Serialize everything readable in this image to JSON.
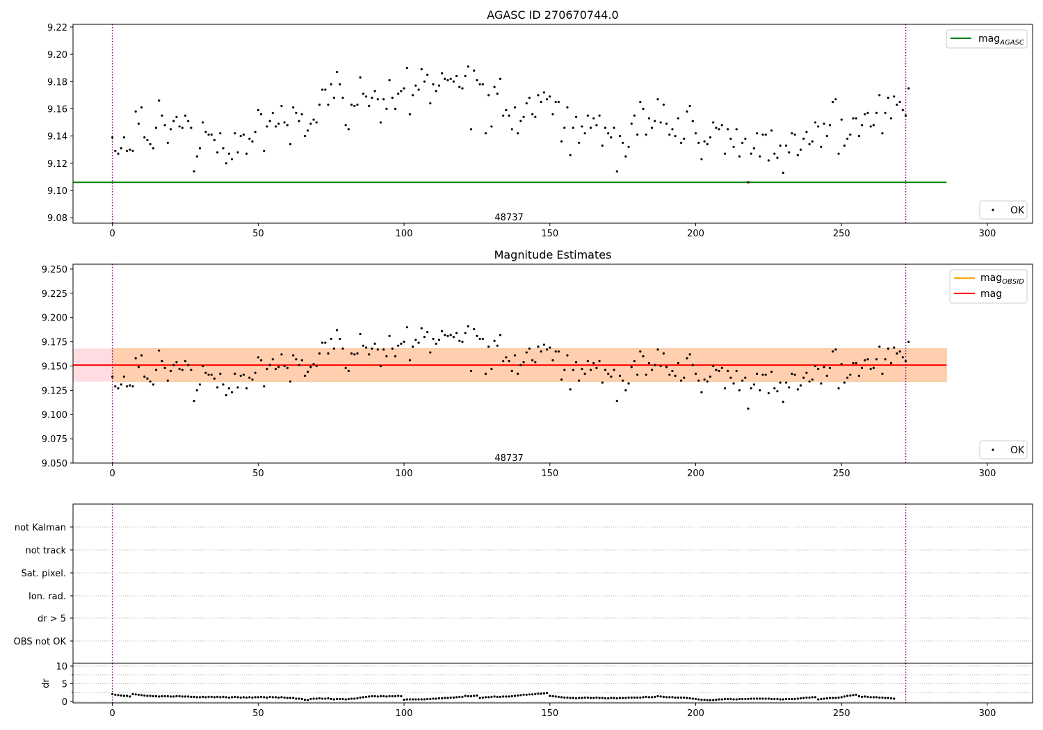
{
  "chart_data": [
    {
      "type": "scatter",
      "title": "AGASC ID 270670744.0",
      "xlim": [
        -13.5,
        315.5
      ],
      "ylim": [
        9.076,
        9.222
      ],
      "xticks": [
        0,
        50,
        100,
        150,
        200,
        250,
        300
      ],
      "yticks": [
        9.08,
        9.1,
        9.12,
        9.14,
        9.16,
        9.18,
        9.2,
        9.22
      ],
      "ytick_labels": [
        "9.08",
        "9.10",
        "9.12",
        "9.14",
        "9.16",
        "9.18",
        "9.20",
        "9.22"
      ],
      "reference_line": {
        "label_main": "mag",
        "label_sub": "AGASC",
        "value": 9.106,
        "x_range": [
          -13.5,
          286
        ],
        "color": "#008000"
      },
      "vlines": [
        0,
        272
      ],
      "vline_color": "#800080",
      "annotation": {
        "text": "48737",
        "x": 136,
        "y": 9.08
      },
      "series": [
        {
          "name": "OK",
          "color": "#000000"
        }
      ],
      "legend_ok": "OK",
      "legend_position": "top-right"
    },
    {
      "type": "scatter",
      "title": "Magnitude Estimates",
      "xlim": [
        -13.5,
        315.5
      ],
      "ylim": [
        9.05,
        9.255
      ],
      "xticks": [
        0,
        50,
        100,
        150,
        200,
        250,
        300
      ],
      "yticks": [
        9.05,
        9.075,
        9.1,
        9.125,
        9.15,
        9.175,
        9.2,
        9.225,
        9.25
      ],
      "ytick_labels": [
        "9.050",
        "9.075",
        "9.100",
        "9.125",
        "9.150",
        "9.175",
        "9.200",
        "9.225",
        "9.250"
      ],
      "mag_line": {
        "label": "mag",
        "value": 9.151,
        "color": "#ff0000"
      },
      "mag_obsid": {
        "label_main": "mag",
        "label_sub": "OBSID",
        "color": "#ffa500"
      },
      "band_outer": [
        9.134,
        9.168
      ],
      "band_inner": [
        9.134,
        9.168
      ],
      "band_x_range": [
        -13.5,
        286
      ],
      "vlines": [
        0,
        272
      ],
      "annotation": {
        "text": "48737",
        "x": 136,
        "y": 9.055
      },
      "legend_ok": "OK",
      "legend_position": "top-right"
    },
    {
      "type": "scatter",
      "title": "",
      "flags": [
        "not Kalman",
        "not track",
        "Sat. pixel.",
        "Ion. rad.",
        "dr > 5",
        "OBS not OK"
      ],
      "vlines": [
        0,
        272
      ]
    },
    {
      "type": "scatter",
      "title": "",
      "ylabel": "dr",
      "xlim": [
        -13.5,
        315.5
      ],
      "ylim": [
        0,
        10
      ],
      "yticks": [
        0,
        5,
        10
      ],
      "ytick_labels": [
        "0",
        "5",
        "10"
      ],
      "xticks": [
        0,
        50,
        100,
        150,
        200,
        250,
        300
      ],
      "vlines": [
        0,
        272
      ]
    }
  ],
  "observations": {
    "x_start": 0,
    "x_step": 1,
    "mag": [
      9.139,
      9.129,
      9.127,
      9.131,
      9.139,
      9.129,
      9.13,
      9.129,
      9.158,
      9.149,
      9.161,
      9.139,
      9.137,
      9.134,
      9.131,
      9.146,
      9.166,
      9.155,
      9.148,
      9.135,
      9.145,
      9.151,
      9.154,
      9.147,
      9.146,
      9.155,
      9.151,
      9.146,
      9.114,
      9.125,
      9.131,
      9.15,
      9.143,
      9.141,
      9.141,
      9.137,
      9.128,
      9.142,
      9.131,
      9.12,
      9.127,
      9.123,
      9.142,
      9.128,
      9.14,
      9.141,
      9.127,
      9.138,
      9.136,
      9.143,
      9.159,
      9.156,
      9.129,
      9.147,
      9.151,
      9.157,
      9.147,
      9.149,
      9.162,
      9.15,
      9.148,
      9.134,
      9.161,
      9.157,
      9.151,
      9.156,
      9.14,
      9.144,
      9.149,
      9.152,
      9.15,
      9.163,
      9.174,
      9.174,
      9.163,
      9.178,
      9.168,
      9.187,
      9.178,
      9.168,
      9.148,
      9.145,
      9.163,
      9.162,
      9.163,
      9.183,
      9.171,
      9.169,
      9.162,
      9.168,
      9.173,
      9.167,
      9.15,
      9.167,
      9.16,
      9.181,
      9.168,
      9.16,
      9.171,
      9.173,
      9.175,
      9.19,
      9.156,
      9.17,
      9.177,
      9.174,
      9.189,
      9.18,
      9.185,
      9.164,
      9.178,
      9.173,
      9.177,
      9.186,
      9.182,
      9.181,
      9.182,
      9.18,
      9.184,
      9.176,
      9.175,
      9.184,
      9.191,
      9.145,
      9.188,
      9.181,
      9.178,
      9.178,
      9.142,
      9.17,
      9.147,
      9.176,
      9.171,
      9.182,
      9.155,
      9.159,
      9.155,
      9.145,
      9.161,
      9.142,
      9.151,
      9.154,
      9.164,
      9.168,
      9.156,
      9.154,
      9.17,
      9.165,
      9.172,
      9.167,
      9.169,
      9.156,
      9.165,
      9.165,
      9.136,
      9.146,
      9.161,
      9.126,
      9.146,
      9.154,
      9.135,
      9.147,
      9.142,
      9.155,
      9.146,
      9.153,
      9.148,
      9.155,
      9.133,
      9.146,
      9.142,
      9.139,
      9.146,
      9.114,
      9.14,
      9.135,
      9.125,
      9.132,
      9.149,
      9.155,
      9.141,
      9.165,
      9.16,
      9.141,
      9.153,
      9.146,
      9.151,
      9.167,
      9.15,
      9.163,
      9.149,
      9.141,
      9.145,
      9.14,
      9.153,
      9.135,
      9.138,
      9.158,
      9.162,
      9.151,
      9.142,
      9.135,
      9.123,
      9.136,
      9.134,
      9.139,
      9.15,
      9.146,
      9.145,
      9.148,
      9.127,
      9.145,
      9.138,
      9.132,
      9.145,
      9.125,
      9.135,
      9.138,
      9.106,
      9.127,
      9.131,
      9.142,
      9.125,
      9.141,
      9.141,
      9.122,
      9.144,
      9.127,
      9.124,
      9.133,
      9.113,
      9.133,
      9.128,
      9.142,
      9.141,
      9.126,
      9.13,
      9.138,
      9.143,
      9.134,
      9.136,
      9.15,
      9.147,
      9.132,
      9.149,
      9.14,
      9.148,
      9.165,
      9.167,
      9.127,
      9.152,
      9.133,
      9.138,
      9.141,
      9.153,
      9.153,
      9.14,
      9.148,
      9.156,
      9.157,
      9.147,
      9.148,
      9.157,
      9.17,
      9.142,
      9.157,
      9.168,
      9.153,
      9.169,
      9.163,
      9.165,
      9.159,
      9.155,
      9.175
    ],
    "dr": [
      2.1,
      1.9,
      1.8,
      1.7,
      1.6,
      1.6,
      1.4,
      2.1,
      2.0,
      1.9,
      1.8,
      1.7,
      1.6,
      1.6,
      1.5,
      1.5,
      1.4,
      1.5,
      1.5,
      1.5,
      1.4,
      1.4,
      1.5,
      1.5,
      1.4,
      1.4,
      1.4,
      1.3,
      1.3,
      1.2,
      1.2,
      1.3,
      1.2,
      1.3,
      1.3,
      1.2,
      1.3,
      1.2,
      1.3,
      1.2,
      1.1,
      1.2,
      1.3,
      1.2,
      1.1,
      1.2,
      1.1,
      1.2,
      1.1,
      1.2,
      1.2,
      1.3,
      1.2,
      1.1,
      1.3,
      1.2,
      1.2,
      1.1,
      1.2,
      1.1,
      1.0,
      1.0,
      1.0,
      0.8,
      0.8,
      0.7,
      0.5,
      0.4,
      0.7,
      0.8,
      0.8,
      0.9,
      0.8,
      0.8,
      0.9,
      0.7,
      0.6,
      0.7,
      0.7,
      0.7,
      0.6,
      0.7,
      0.8,
      0.8,
      0.9,
      1.1,
      1.2,
      1.3,
      1.4,
      1.5,
      1.5,
      1.4,
      1.5,
      1.5,
      1.4,
      1.5,
      1.5,
      1.5,
      1.6,
      1.5,
      0.5,
      0.6,
      0.6,
      0.6,
      0.6,
      0.6,
      0.6,
      0.6,
      0.7,
      0.7,
      0.8,
      0.8,
      0.9,
      0.9,
      1.0,
      1.0,
      1.1,
      1.1,
      1.2,
      1.3,
      1.3,
      1.6,
      1.5,
      1.5,
      1.6,
      1.7,
      1.0,
      1.1,
      1.2,
      1.2,
      1.3,
      1.4,
      1.3,
      1.3,
      1.4,
      1.4,
      1.4,
      1.5,
      1.6,
      1.7,
      1.8,
      1.9,
      1.9,
      2.0,
      2.0,
      2.1,
      2.2,
      2.2,
      2.3,
      2.4,
      1.6,
      1.5,
      1.4,
      1.3,
      1.2,
      1.1,
      1.1,
      1.0,
      1.0,
      0.9,
      1.0,
      1.0,
      1.1,
      1.1,
      1.0,
      1.0,
      1.1,
      1.0,
      1.0,
      0.9,
      0.9,
      1.0,
      1.0,
      0.9,
      1.0,
      1.0,
      1.0,
      1.1,
      1.1,
      1.1,
      1.1,
      1.1,
      1.2,
      1.3,
      1.2,
      1.2,
      1.3,
      1.5,
      1.4,
      1.3,
      1.2,
      1.2,
      1.2,
      1.1,
      1.1,
      1.1,
      1.1,
      1.0,
      0.9,
      0.8,
      0.7,
      0.6,
      0.5,
      0.5,
      0.4,
      0.4,
      0.4,
      0.5,
      0.6,
      0.6,
      0.7,
      0.7,
      0.7,
      0.6,
      0.6,
      0.7,
      0.7,
      0.7,
      0.7,
      0.8,
      0.8,
      0.8,
      0.8,
      0.8,
      0.8,
      0.8,
      0.7,
      0.7,
      0.7,
      0.6,
      0.6,
      0.7,
      0.7,
      0.7,
      0.7,
      0.8,
      0.9,
      1.0,
      1.1,
      1.1,
      1.2,
      1.2,
      0.6,
      0.7,
      0.8,
      0.9,
      1.0,
      1.0,
      1.0,
      1.1,
      1.2,
      1.4,
      1.6,
      1.7,
      1.8,
      1.9,
      1.5,
      1.3,
      1.4,
      1.3,
      1.2,
      1.2,
      1.2,
      1.1,
      1.1,
      1.0,
      1.0,
      0.9,
      0.8
    ]
  }
}
